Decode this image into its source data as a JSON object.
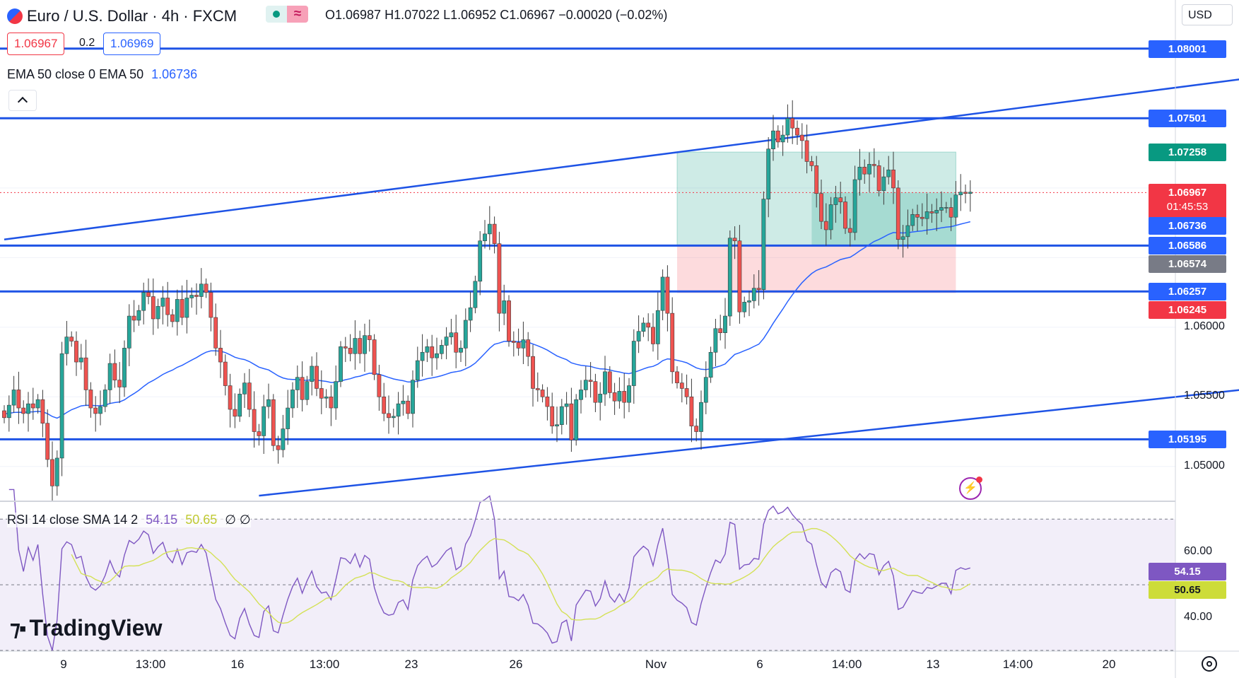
{
  "header": {
    "title": "Euro / U.S. Dollar · 4h · FXCM",
    "ohlc": "O1.06987  H1.07022  L1.06952  C1.06967  −0.00020 (−0.02%)",
    "currency": "USD",
    "bid": "1.06967",
    "spread": "0.2",
    "ask": "1.06969",
    "ema_label": "EMA 50 close 0 EMA 50",
    "ema_value": "1.06736",
    "rsi_label": "RSI 14 close SMA 14 2",
    "rsi_value": "54.15",
    "rsi_sma_value": "50.65",
    "rsi_extra": "∅ ∅",
    "collapse_icon": "chevron-up-icon",
    "brand": "TradingView"
  },
  "colors": {
    "up": "#26a69a",
    "down": "#ef5350",
    "ema": "#2962ff",
    "level": "#1e53e5",
    "rsi_line": "#7e57c2",
    "rsi_sma": "#d4e157",
    "accent_tag": "#2962ff"
  },
  "chart_data": [
    {
      "type": "candlestick",
      "symbol": "EURUSD",
      "timeframe": "4h",
      "ylim": [
        1.0475,
        1.0835
      ],
      "y_ticks": [
        "1.05000",
        "1.05500",
        "1.06000"
      ],
      "x_ticks": [
        "9",
        "13:00",
        "16",
        "13:00",
        "23",
        "26",
        "Nov",
        "6",
        "14:00",
        "13",
        "14:00",
        "20"
      ],
      "horizontal_levels": [
        1.08001,
        1.07501,
        1.06586,
        1.06257,
        1.05195
      ],
      "price_tags": [
        {
          "label": "1.08001",
          "value": 1.08001,
          "color": "#2962ff"
        },
        {
          "label": "1.07501",
          "value": 1.07501,
          "color": "#2962ff"
        },
        {
          "label": "1.07258",
          "value": 1.07258,
          "color": "#089981"
        },
        {
          "label": "1.06967",
          "value": 1.06967,
          "color": "#f23645",
          "sub": "01:45:53"
        },
        {
          "label": "1.06736",
          "value": 1.06736,
          "color": "#2962ff"
        },
        {
          "label": "1.06586",
          "value": 1.06586,
          "color": "#2962ff"
        },
        {
          "label": "1.06574",
          "value": 1.06574,
          "color": "#787b86"
        },
        {
          "label": "1.06257",
          "value": 1.06257,
          "color": "#2962ff"
        },
        {
          "label": "1.06245",
          "value": 1.06245,
          "color": "#f23645"
        },
        {
          "label": "1.05195",
          "value": 1.05195,
          "color": "#2962ff"
        }
      ],
      "position_tool": {
        "entry": 1.06586,
        "target": 1.07258,
        "stop": 1.06245
      },
      "channel": {
        "upper": [
          [
            0,
            1.0663
          ],
          [
            295,
            1.0795
          ]
        ],
        "lower": [
          [
            53,
            1.0479
          ],
          [
            330,
            1.0582
          ]
        ]
      },
      "current_price": 1.06967,
      "candles_close": [
        1.0535,
        1.0544,
        1.0555,
        1.0542,
        1.0538,
        1.0545,
        1.0542,
        1.0548,
        1.0531,
        1.0505,
        1.0486,
        1.0506,
        1.0581,
        1.0593,
        1.059,
        1.0575,
        1.0578,
        1.0555,
        1.0542,
        1.0538,
        1.0543,
        1.0555,
        1.0574,
        1.0562,
        1.0557,
        1.0585,
        1.0608,
        1.0605,
        1.0612,
        1.0625,
        1.0622,
        1.0606,
        1.0615,
        1.0621,
        1.0609,
        1.0604,
        1.062,
        1.0607,
        1.0621,
        1.0623,
        1.0622,
        1.0631,
        1.0625,
        1.0607,
        1.0585,
        1.0575,
        1.0558,
        1.0541,
        1.0536,
        1.0552,
        1.056,
        1.0541,
        1.0525,
        1.0522,
        1.0543,
        1.0548,
        1.0515,
        1.0512,
        1.0527,
        1.0542,
        1.0555,
        1.0564,
        1.0548,
        1.0561,
        1.0572,
        1.0556,
        1.0549,
        1.055,
        1.0542,
        1.0561,
        1.0586,
        1.0585,
        1.0581,
        1.0592,
        1.0581,
        1.0594,
        1.0591,
        1.0566,
        1.055,
        1.0538,
        1.0535,
        1.0536,
        1.0545,
        1.0547,
        1.0538,
        1.0562,
        1.0576,
        1.0582,
        1.0586,
        1.0578,
        1.0581,
        1.0587,
        1.0593,
        1.0596,
        1.0582,
        1.0585,
        1.0605,
        1.0614,
        1.0633,
        1.0662,
        1.0667,
        1.0674,
        1.066,
        1.061,
        1.0619,
        1.059,
        1.0589,
        1.0585,
        1.0591,
        1.0579,
        1.0556,
        1.0555,
        1.055,
        1.0543,
        1.0529,
        1.053,
        1.0543,
        1.0545,
        1.0519,
        1.0548,
        1.0555,
        1.0562,
        1.0561,
        1.0546,
        1.0552,
        1.0568,
        1.0553,
        1.0547,
        1.0554,
        1.0546,
        1.0558,
        1.059,
        1.0597,
        1.0603,
        1.06,
        1.0588,
        1.0612,
        1.0636,
        1.061,
        1.0568,
        1.056,
        1.0556,
        1.055,
        1.0529,
        1.0525,
        1.0546,
        1.0564,
        1.0582,
        1.0599,
        1.0596,
        1.0608,
        1.0664,
        1.0662,
        1.0611,
        1.0618,
        1.0619,
        1.0628,
        1.0627,
        1.0692,
        1.0728,
        1.0741,
        1.0733,
        1.0738,
        1.075,
        1.0743,
        1.0738,
        1.0734,
        1.0719,
        1.0716,
        1.0696,
        1.0676,
        1.067,
        1.0688,
        1.0693,
        1.069,
        1.0671,
        1.0668,
        1.0706,
        1.0715,
        1.071,
        1.0717,
        1.0716,
        1.0698,
        1.0708,
        1.0713,
        1.07,
        1.0663,
        1.0665,
        1.0673,
        1.0681,
        1.0679,
        1.0678,
        1.0683,
        1.0682,
        1.0684,
        1.0686,
        1.0686,
        1.0679,
        1.0695,
        1.0697,
        1.0696,
        1.0697
      ]
    },
    {
      "type": "line",
      "name": "RSI",
      "ylim": [
        30,
        75
      ],
      "y_ticks": [
        "60.00",
        "40.00"
      ],
      "band": [
        30,
        70
      ],
      "midline": 50,
      "last_rsi": 54.15,
      "last_sma": 50.65
    }
  ]
}
